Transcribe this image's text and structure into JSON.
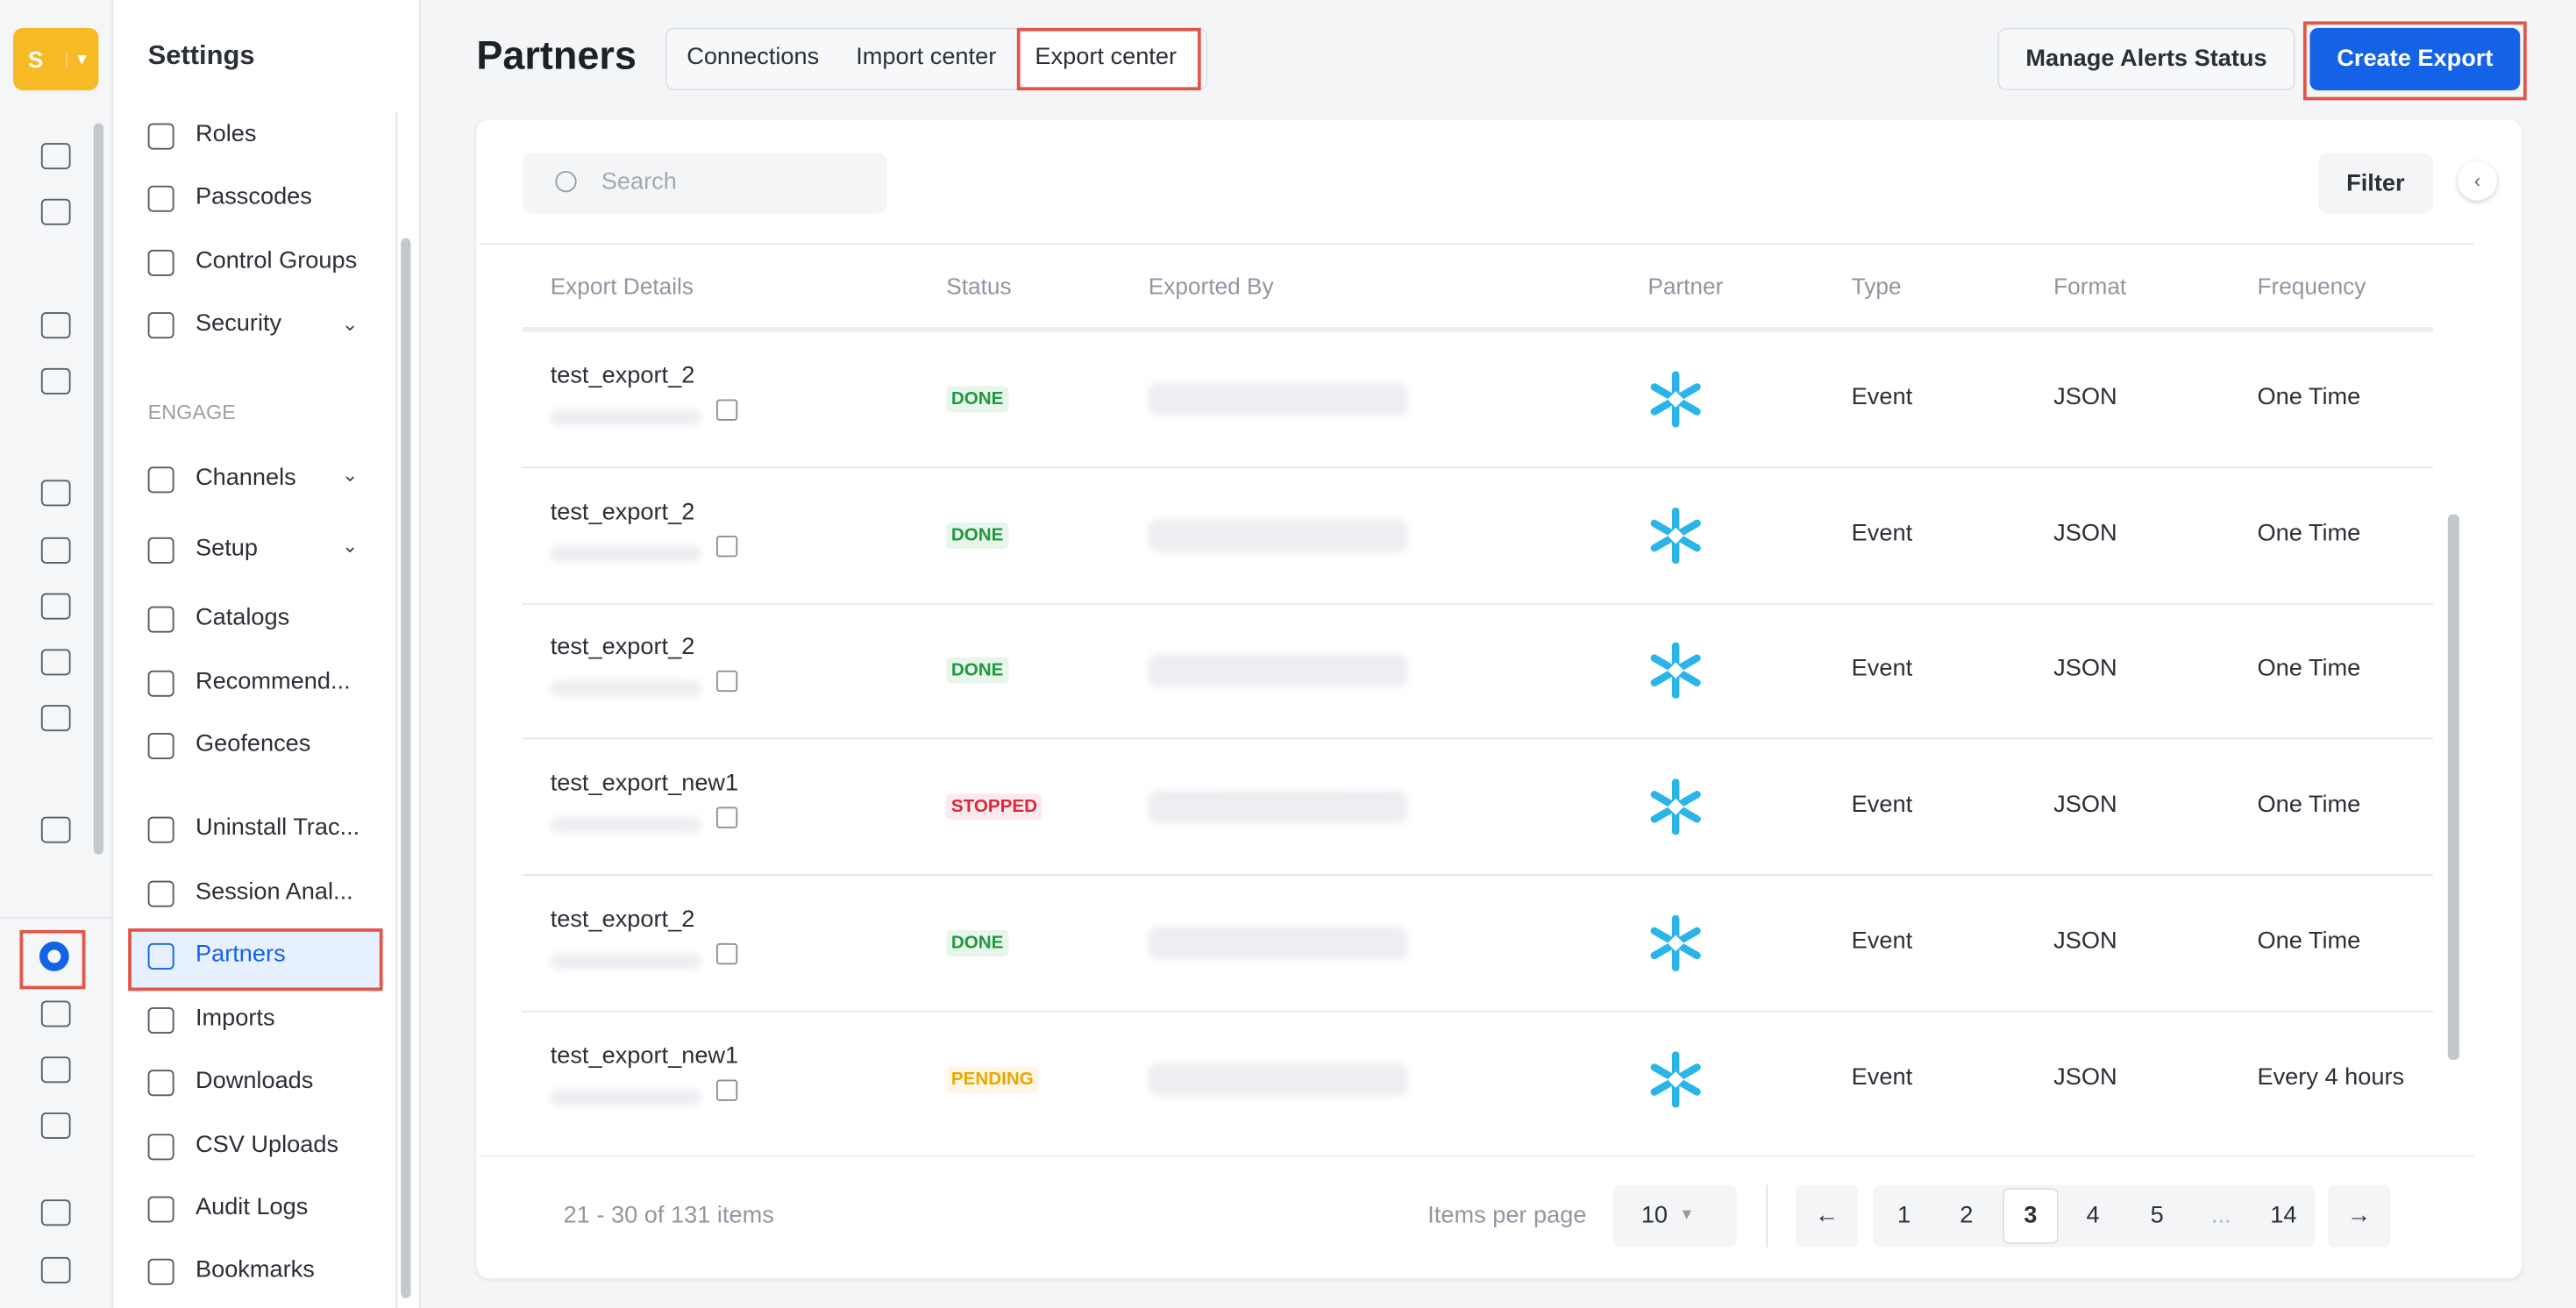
{
  "sidebar": {
    "logo": "S",
    "title": "Settings",
    "items_top": [
      "Roles",
      "Passcodes",
      "Control Groups",
      "Security"
    ],
    "section_label": "ENGAGE",
    "items_engage": [
      "Channels",
      "Setup",
      "Catalogs",
      "Recommend...",
      "Geofences",
      "Uninstall Trac...",
      "Session Anal...",
      "Partners",
      "Imports",
      "Downloads",
      "CSV Uploads",
      "Audit Logs",
      "Bookmarks"
    ]
  },
  "header": {
    "title": "Partners",
    "tabs": [
      "Connections",
      "Import center",
      "Export center"
    ],
    "buttons": [
      "Manage Alerts Status",
      "Create Export"
    ]
  },
  "table": {
    "search_placeholder": "Search",
    "filter": "Filter",
    "columns": [
      "Export Details",
      "Status",
      "Exported By",
      "Partner",
      "Type",
      "Format",
      "Frequency"
    ],
    "rows": [
      {
        "name": "test_export_2",
        "status": "DONE",
        "status_color": "#1f9a3e",
        "type": "Event",
        "format": "JSON",
        "frequency": "One Time"
      },
      {
        "name": "test_export_2",
        "status": "DONE",
        "status_color": "#1f9a3e",
        "type": "Event",
        "format": "JSON",
        "frequency": "One Time"
      },
      {
        "name": "test_export_2",
        "status": "DONE",
        "status_color": "#1f9a3e",
        "type": "Event",
        "format": "JSON",
        "frequency": "One Time"
      },
      {
        "name": "test_export_new1",
        "status": "STOPPED",
        "status_color": "#d9283c",
        "type": "Event",
        "format": "JSON",
        "frequency": "One Time"
      },
      {
        "name": "test_export_2",
        "status": "DONE",
        "status_color": "#1f9a3e",
        "type": "Event",
        "format": "JSON",
        "frequency": "One Time"
      },
      {
        "name": "test_export_new1",
        "status": "PENDING",
        "status_color": "#e9a800",
        "type": "Event",
        "format": "JSON",
        "frequency": "Every 4 hours"
      }
    ]
  },
  "footer": {
    "summary": "21 - 30 of 131 items",
    "per_page_label": "Items per page",
    "per_page_value": "10",
    "pages": [
      "←",
      "1",
      "2",
      "3",
      "4",
      "5",
      "...",
      "14",
      "→"
    ]
  }
}
